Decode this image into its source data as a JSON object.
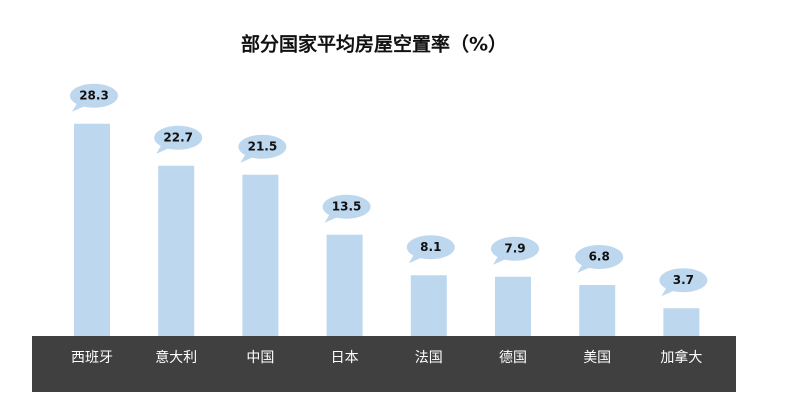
{
  "chart_data": {
    "type": "bar",
    "title": "部分国家平均房屋空置率（%）",
    "categories": [
      "西班牙",
      "意大利",
      "中国",
      "日本",
      "法国",
      "德国",
      "美国",
      "加拿大"
    ],
    "values": [
      28.3,
      22.7,
      21.5,
      13.5,
      8.1,
      7.9,
      6.8,
      3.7
    ],
    "color": "#bdd7ee"
  }
}
